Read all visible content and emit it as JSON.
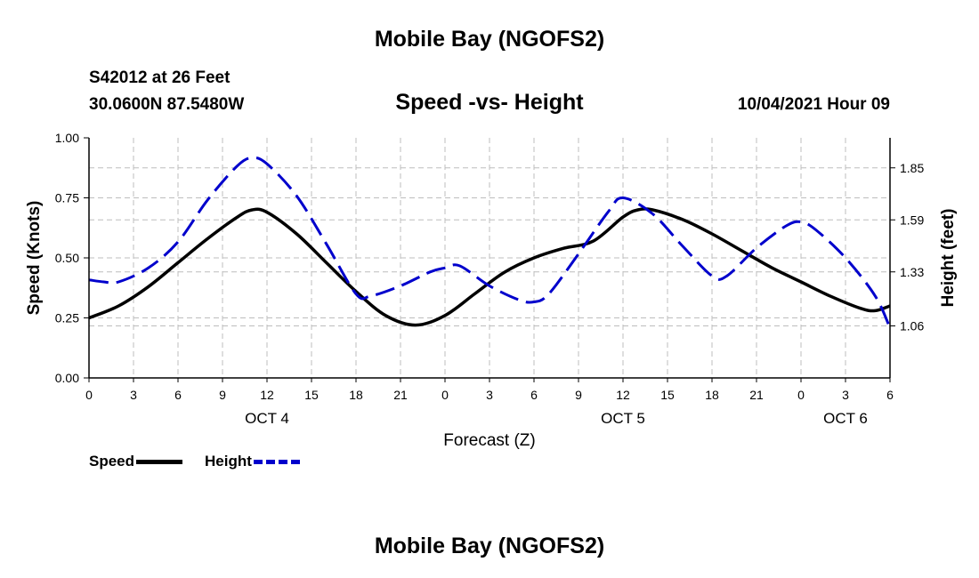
{
  "page": {
    "title_top": "Mobile Bay (NGOFS2)",
    "title_bottom": "Mobile Bay (NGOFS2)",
    "station": "S42012 at 26 Feet",
    "coords": "30.0600N  87.5480W",
    "subtitle": "Speed -vs- Height",
    "datetime": "10/04/2021 Hour 09"
  },
  "legend": {
    "speed": "Speed",
    "height": "Height"
  },
  "chart_data": {
    "type": "line",
    "title": "Speed -vs- Height",
    "xlabel": "Forecast (Z)",
    "ylabel_left": "Speed (Knots)",
    "ylabel_right": "Height (feet)",
    "x_unit": "hours from 00Z Oct 4",
    "xlim": [
      0,
      54
    ],
    "ylim_left": [
      0,
      1
    ],
    "ylim_right": [
      0.8,
      2.0
    ],
    "x_ticks": [
      0,
      3,
      6,
      9,
      12,
      15,
      18,
      21,
      24,
      27,
      30,
      33,
      36,
      39,
      42,
      45,
      48,
      51,
      54
    ],
    "x_tick_labels": [
      "0",
      "3",
      "6",
      "9",
      "12",
      "15",
      "18",
      "21",
      "0",
      "3",
      "6",
      "9",
      "12",
      "15",
      "18",
      "21",
      "0",
      "3",
      "6"
    ],
    "day_labels": [
      {
        "x": 12,
        "label": "OCT 4"
      },
      {
        "x": 36,
        "label": "OCT 5"
      },
      {
        "x": 51,
        "label": "OCT 6"
      }
    ],
    "left_ticks": [
      0,
      0.25,
      0.5,
      0.75,
      1.0
    ],
    "left_tick_labels": [
      "0.00",
      "0.25",
      "0.50",
      "0.75",
      "1.00"
    ],
    "right_ticks": [
      1.06,
      1.33,
      1.59,
      1.85
    ],
    "right_tick_labels": [
      "1.06",
      "1.33",
      "1.59",
      "1.85"
    ],
    "grid": true,
    "series": [
      {
        "name": "Speed",
        "axis": "left",
        "color": "#000000",
        "style": "solid",
        "x": [
          0,
          2,
          4,
          6,
          8,
          10,
          11,
          12,
          14,
          16,
          18,
          20,
          22,
          24,
          26,
          28,
          30,
          32,
          34,
          36,
          37,
          38,
          40,
          42,
          44,
          46,
          48,
          50,
          52,
          53,
          54
        ],
        "values": [
          0.25,
          0.3,
          0.38,
          0.48,
          0.58,
          0.67,
          0.7,
          0.69,
          0.6,
          0.48,
          0.36,
          0.26,
          0.22,
          0.26,
          0.35,
          0.44,
          0.5,
          0.54,
          0.57,
          0.67,
          0.7,
          0.7,
          0.66,
          0.6,
          0.53,
          0.46,
          0.4,
          0.34,
          0.29,
          0.28,
          0.3
        ]
      },
      {
        "name": "Height",
        "axis": "right",
        "color": "#0000cc",
        "style": "dashed",
        "x": [
          0,
          1,
          2,
          4,
          6,
          8,
          10,
          11,
          12,
          14,
          16,
          18,
          19,
          21,
          23,
          24,
          25,
          27,
          29,
          30,
          31,
          33,
          35,
          36,
          38,
          40,
          42,
          43,
          45,
          47,
          48,
          49,
          51,
          53,
          54
        ],
        "values": [
          1.29,
          1.28,
          1.28,
          1.35,
          1.48,
          1.69,
          1.86,
          1.9,
          1.87,
          1.71,
          1.47,
          1.22,
          1.21,
          1.26,
          1.33,
          1.35,
          1.36,
          1.26,
          1.19,
          1.18,
          1.22,
          1.42,
          1.63,
          1.7,
          1.62,
          1.46,
          1.31,
          1.31,
          1.45,
          1.56,
          1.58,
          1.54,
          1.4,
          1.21,
          1.05
        ]
      }
    ]
  }
}
